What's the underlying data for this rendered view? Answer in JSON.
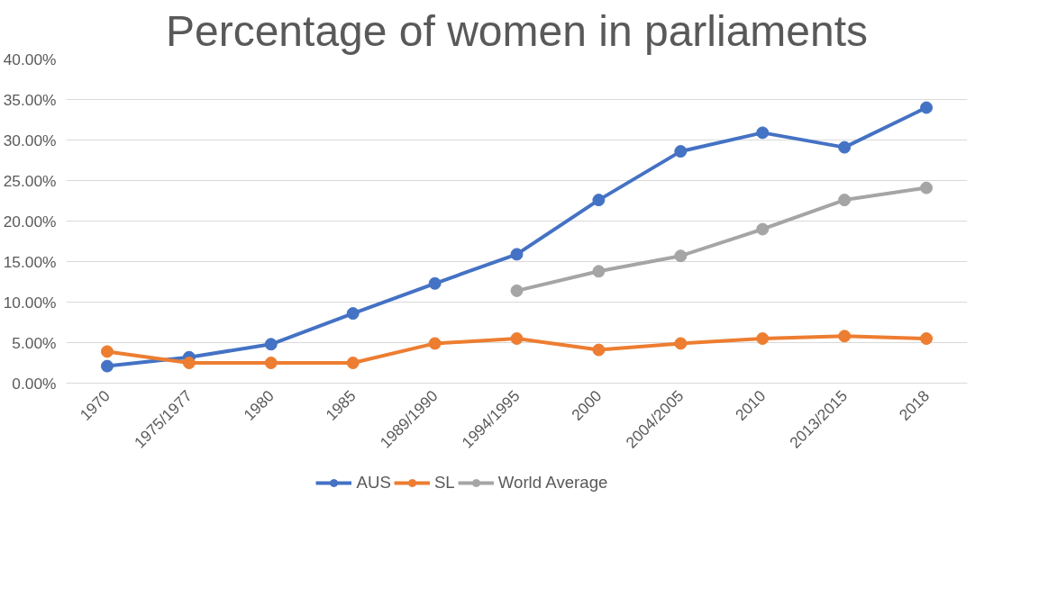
{
  "chart_data": {
    "type": "line",
    "title": "Percentage of women in parliaments",
    "categories": [
      "1970",
      "1975/1977",
      "1980",
      "1985",
      "1989/1990",
      "1994/1995",
      "2000",
      "2004/2005",
      "2010",
      "2013/2015",
      "2018"
    ],
    "series": [
      {
        "name": "AUS",
        "color": "#4472c4",
        "values": [
          2.1,
          3.2,
          4.8,
          8.6,
          12.3,
          15.9,
          22.6,
          28.6,
          30.9,
          29.1,
          34.0
        ]
      },
      {
        "name": "SL",
        "color": "#ed7d31",
        "values": [
          3.9,
          2.5,
          2.5,
          2.5,
          4.9,
          5.5,
          4.1,
          4.9,
          5.5,
          5.8,
          5.5
        ]
      },
      {
        "name": "World Average",
        "color": "#a5a5a5",
        "values": [
          null,
          null,
          null,
          null,
          null,
          11.4,
          13.8,
          15.7,
          19.0,
          22.6,
          24.1
        ]
      }
    ],
    "ylim": [
      0,
      40
    ],
    "yticks": [
      {
        "value": 0,
        "label": "0.00%"
      },
      {
        "value": 5,
        "label": "5.00%"
      },
      {
        "value": 10,
        "label": "10.00%"
      },
      {
        "value": 15,
        "label": "15.00%"
      },
      {
        "value": 20,
        "label": "20.00%"
      },
      {
        "value": 25,
        "label": "25.00%"
      },
      {
        "value": 30,
        "label": "30.00%"
      },
      {
        "value": 35,
        "label": "35.00%"
      },
      {
        "value": 40,
        "label": "40.00%"
      }
    ],
    "grid": "y",
    "legend": "bottom",
    "marker": "circle",
    "line_style": "solid"
  }
}
